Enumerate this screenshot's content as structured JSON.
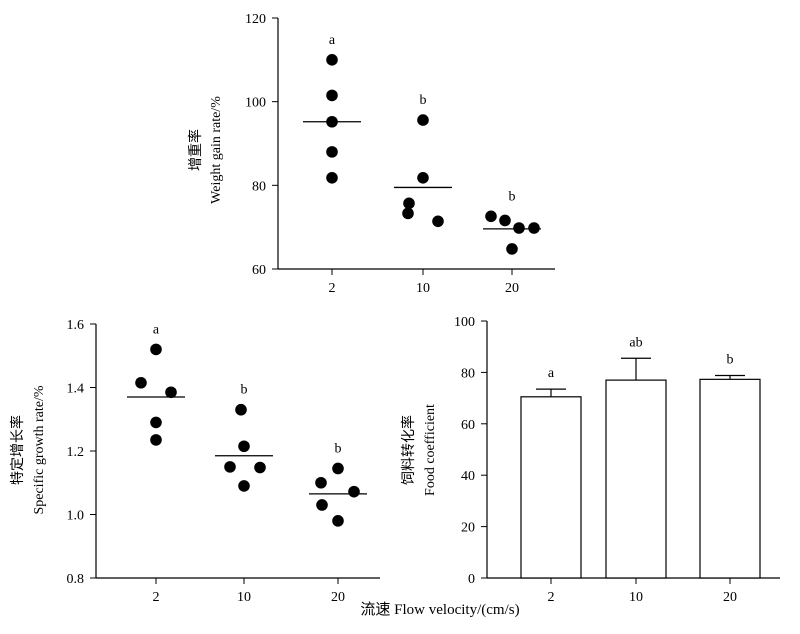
{
  "chart_data": [
    {
      "id": "weight_gain",
      "type": "scatter",
      "ylabel_zh": "增重率",
      "ylabel_en": "Weight gain rate/%",
      "ylim": [
        60,
        120
      ],
      "yticks": [
        "60",
        "80",
        "100",
        "120"
      ],
      "categories": [
        "2",
        "10",
        "20"
      ],
      "groups": [
        {
          "category": "2",
          "points": [
            110.0,
            101.5,
            95.2,
            88.0,
            81.8
          ],
          "mean": 95.2,
          "label": "a"
        },
        {
          "category": "10",
          "points": [
            95.6,
            81.8,
            75.7,
            73.3,
            71.4
          ],
          "mean": 79.5,
          "label": "b"
        },
        {
          "category": "20",
          "points": [
            72.6,
            71.6,
            69.8,
            69.8,
            64.8
          ],
          "mean": 69.6,
          "label": "b"
        }
      ]
    },
    {
      "id": "specific_growth",
      "type": "scatter",
      "ylabel_zh": "特定增长率",
      "ylabel_en": "Specific growth rate/%",
      "ylim": [
        0.8,
        1.6
      ],
      "yticks": [
        "0.8",
        "1.0",
        "1.2",
        "1.4",
        "1.6"
      ],
      "categories": [
        "2",
        "10",
        "20"
      ],
      "groups": [
        {
          "category": "2",
          "points": [
            1.52,
            1.415,
            1.385,
            1.29,
            1.235
          ],
          "mean": 1.37,
          "label": "a"
        },
        {
          "category": "10",
          "points": [
            1.33,
            1.215,
            1.15,
            1.148,
            1.09
          ],
          "mean": 1.185,
          "label": "b"
        },
        {
          "category": "20",
          "points": [
            1.145,
            1.1,
            1.072,
            1.03,
            0.98
          ],
          "mean": 1.065,
          "label": "b"
        }
      ]
    },
    {
      "id": "food_coefficient",
      "type": "bar",
      "ylabel_zh": "饲料转化率",
      "ylabel_en": "Food coefficient",
      "ylim": [
        0,
        100
      ],
      "yticks": [
        "0",
        "20",
        "40",
        "60",
        "80",
        "100"
      ],
      "categories": [
        "2",
        "10",
        "20"
      ],
      "values": [
        70.5,
        77.0,
        77.3
      ],
      "errors": [
        3.0,
        8.5,
        1.5
      ],
      "labels": [
        "a",
        "ab",
        "b"
      ]
    }
  ],
  "xlabel": "流速 Flow velocity/(cm/s)"
}
